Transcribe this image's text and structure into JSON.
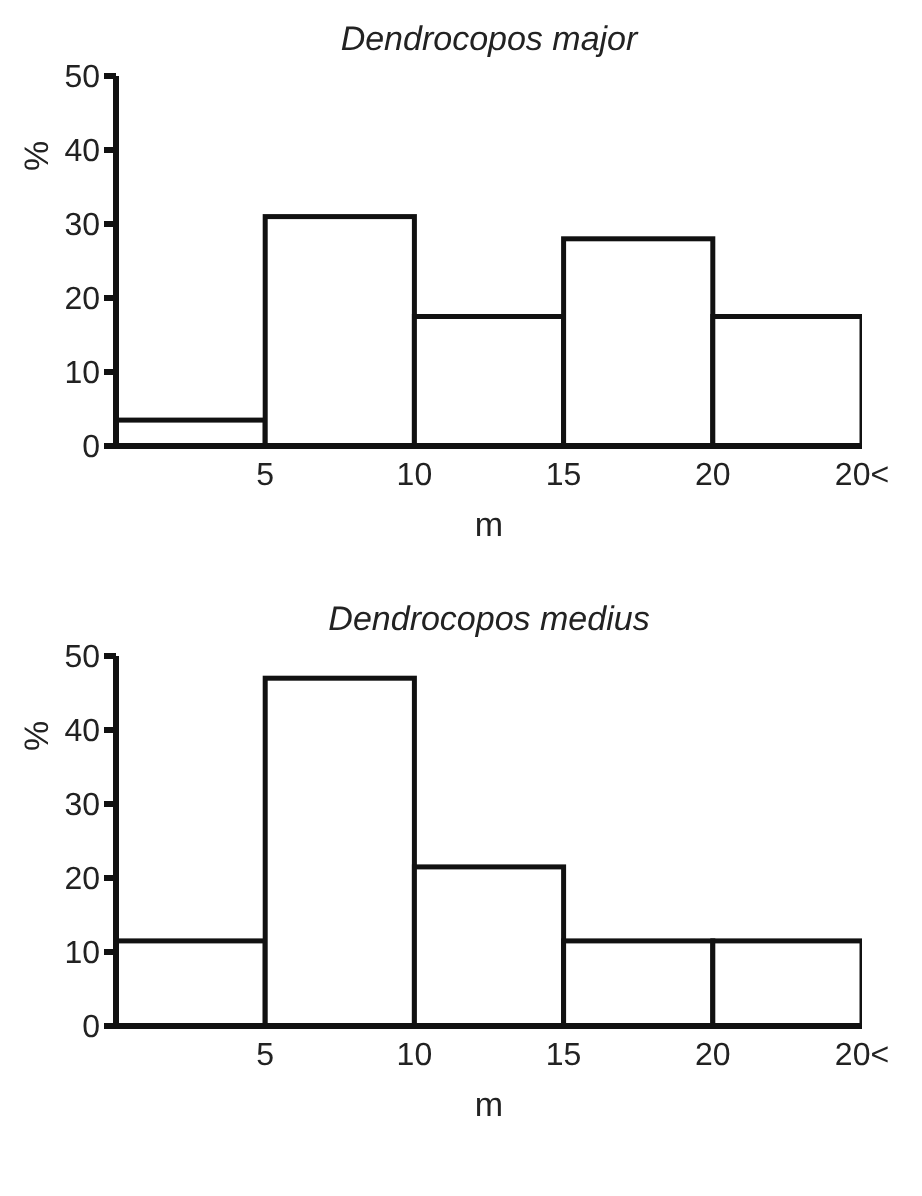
{
  "chart_data": [
    {
      "type": "histogram",
      "title": "Dendrocopos major",
      "xlabel": "m",
      "ylabel": "%",
      "bins": [
        0,
        5,
        10,
        15,
        20,
        25
      ],
      "values": [
        3.5,
        31,
        17.5,
        28,
        17.5
      ],
      "color": "#ffffff",
      "xlim": [
        0,
        25
      ],
      "xticks": [
        5,
        10,
        15,
        20,
        {
          "value": 25,
          "label": "20<"
        }
      ],
      "ylim": [
        0,
        50
      ],
      "yticks": [
        0,
        10,
        20,
        30,
        40,
        50
      ],
      "grid": false,
      "legend": false
    },
    {
      "type": "histogram",
      "title": "Dendrocopos medius",
      "xlabel": "m",
      "ylabel": "%",
      "bins": [
        0,
        5,
        10,
        15,
        20,
        25
      ],
      "values": [
        11.5,
        47,
        21.5,
        11.5,
        11.5
      ],
      "color": "#ffffff",
      "xlim": [
        0,
        25
      ],
      "xticks": [
        5,
        10,
        15,
        20,
        {
          "value": 25,
          "label": "20<"
        }
      ],
      "ylim": [
        0,
        50
      ],
      "yticks": [
        0,
        10,
        20,
        30,
        40,
        50
      ],
      "grid": false,
      "legend": false
    }
  ]
}
